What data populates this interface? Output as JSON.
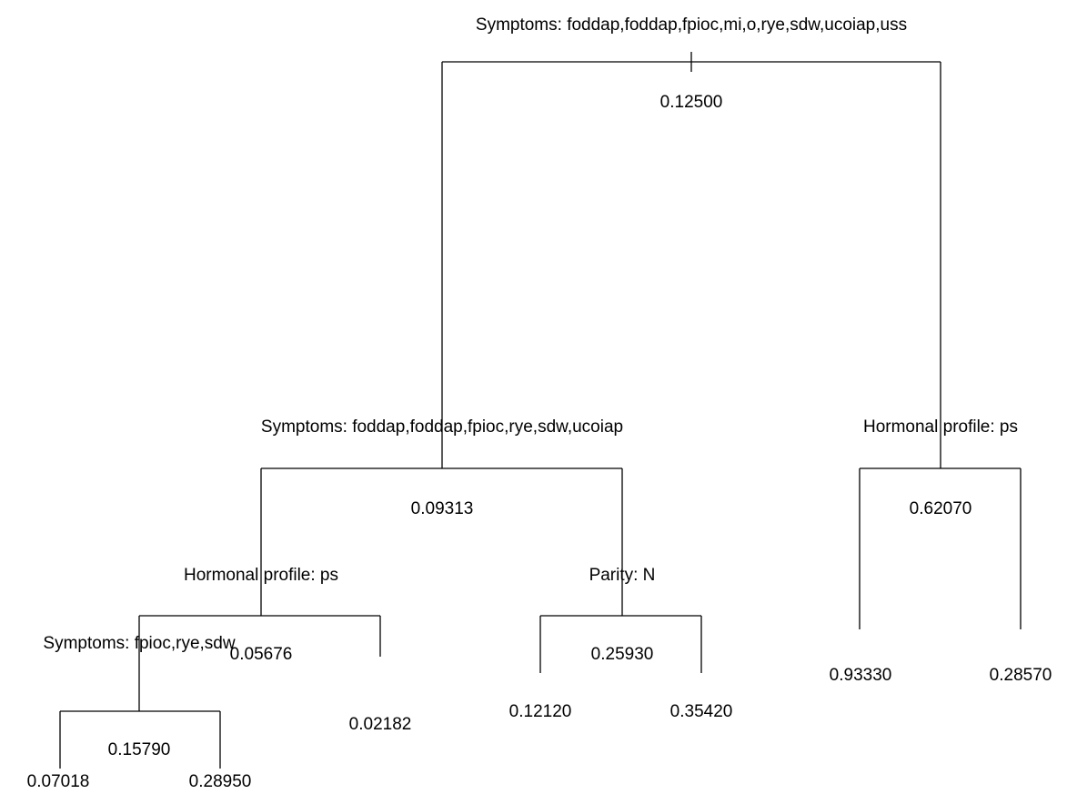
{
  "nodes": [
    {
      "split": "Symptoms: foddap,foddap,fpioc,mi,o,rye,sdw,ucoiap,uss",
      "value": "0.12500"
    },
    {
      "split": "Symptoms: foddap,foddap,fpioc,rye,sdw,ucoiap",
      "value": "0.09313"
    },
    {
      "split": "Hormonal profile: ps",
      "value": "0.62070"
    },
    {
      "split": "Hormonal profile: ps",
      "value": "0.05676"
    },
    {
      "split": "Parity: N",
      "value": "0.25930"
    },
    {
      "split": "Symptoms: fpioc,rye,sdw",
      "value": "0.15790"
    },
    {
      "value": "0.02182"
    },
    {
      "value": "0.12120"
    },
    {
      "value": "0.35420"
    },
    {
      "value": "0.93330"
    },
    {
      "value": "0.28570"
    },
    {
      "value": "0.07018"
    },
    {
      "value": "0.28950"
    }
  ]
}
